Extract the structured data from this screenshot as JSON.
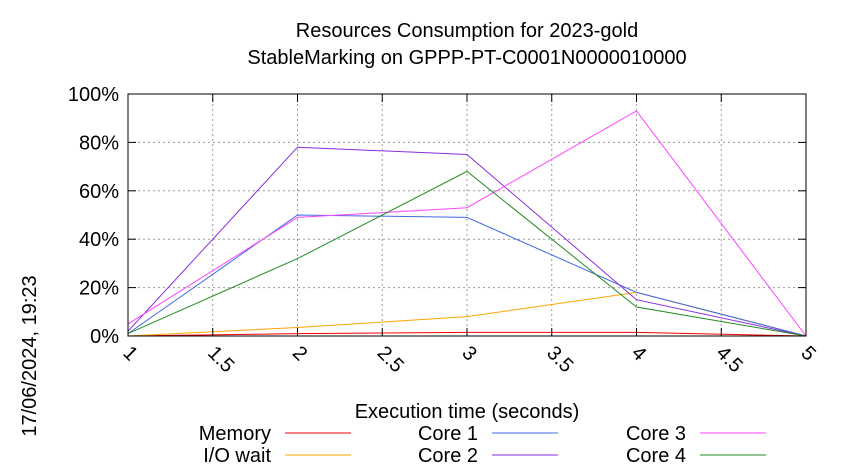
{
  "chart_data": {
    "type": "line",
    "title": "Resources Consumption for 2023-gold",
    "subtitle": "StableMarking on GPPP-PT-C0001N0000010000",
    "xlabel": "Execution time (seconds)",
    "ylabel": "",
    "side_label": "17/06/2024, 19:23",
    "xlim": [
      1,
      5
    ],
    "ylim": [
      0,
      100
    ],
    "x_ticks": [
      {
        "v": 1,
        "label": "1"
      },
      {
        "v": 1.5,
        "label": "1.5"
      },
      {
        "v": 2,
        "label": "2"
      },
      {
        "v": 2.5,
        "label": "2.5"
      },
      {
        "v": 3,
        "label": "3"
      },
      {
        "v": 3.5,
        "label": "3.5"
      },
      {
        "v": 4,
        "label": "4"
      },
      {
        "v": 4.5,
        "label": "4.5"
      },
      {
        "v": 5,
        "label": "5"
      }
    ],
    "y_ticks": [
      {
        "v": 0,
        "label": "0%"
      },
      {
        "v": 20,
        "label": "20%"
      },
      {
        "v": 40,
        "label": "40%"
      },
      {
        "v": 60,
        "label": "60%"
      },
      {
        "v": 80,
        "label": "80%"
      },
      {
        "v": 100,
        "label": "100%"
      }
    ],
    "grid": true,
    "legend_position": "bottom",
    "x": [
      1,
      2,
      3,
      4,
      5
    ],
    "series": [
      {
        "name": "Memory",
        "color": "#ff0000",
        "values": [
          0,
          1,
          1.5,
          1.5,
          0
        ]
      },
      {
        "name": "I/O wait",
        "color": "#ffa500",
        "values": [
          0,
          3.5,
          8,
          18,
          0
        ]
      },
      {
        "name": "Core 1",
        "color": "#4169e1",
        "values": [
          1,
          50,
          49,
          18,
          0
        ]
      },
      {
        "name": "Core 2",
        "color": "#8a2be2",
        "values": [
          2,
          78,
          75,
          15,
          0
        ]
      },
      {
        "name": "Core 3",
        "color": "#ff44ff",
        "values": [
          5,
          49,
          53,
          93,
          0
        ]
      },
      {
        "name": "Core 4",
        "color": "#228b22",
        "values": [
          1,
          32,
          68,
          12,
          0
        ]
      }
    ]
  }
}
